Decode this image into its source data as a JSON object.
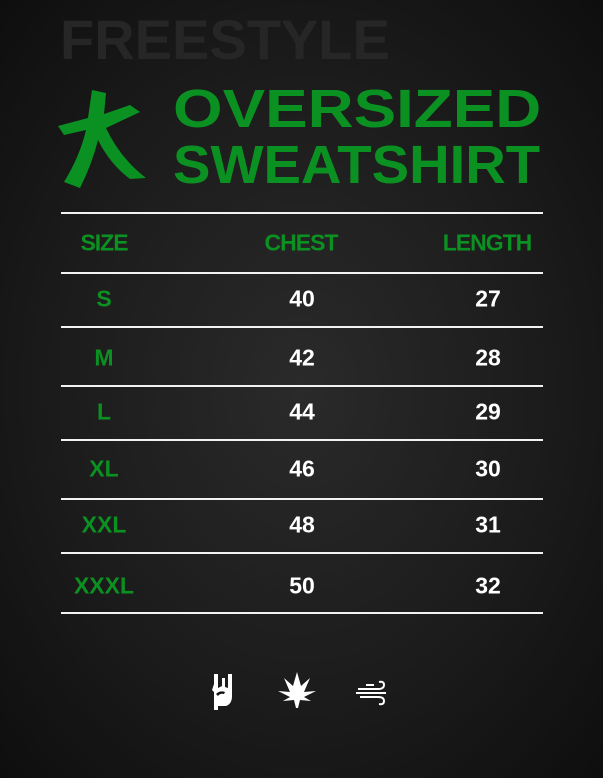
{
  "background_text": "FREESTYLE",
  "title": {
    "line1": "OVERSIZED",
    "line2": "SWEATSHIRT"
  },
  "colors": {
    "accent": "#0b9121",
    "text": "#ffffff",
    "background": "#1c1c1c"
  },
  "table": {
    "headers": [
      "SIZE",
      "CHEST",
      "LENGTH"
    ],
    "rows": [
      {
        "size": "S",
        "chest": "40",
        "length": "27"
      },
      {
        "size": "M",
        "chest": "42",
        "length": "28"
      },
      {
        "size": "L",
        "chest": "44",
        "length": "29"
      },
      {
        "size": "XL",
        "chest": "46",
        "length": "30"
      },
      {
        "size": "XXL",
        "chest": "48",
        "length": "31"
      },
      {
        "size": "XXXL",
        "chest": "50",
        "length": "32"
      }
    ]
  },
  "footer_icons": [
    "rock-hand-icon",
    "cannabis-leaf-icon",
    "wind-icon"
  ]
}
